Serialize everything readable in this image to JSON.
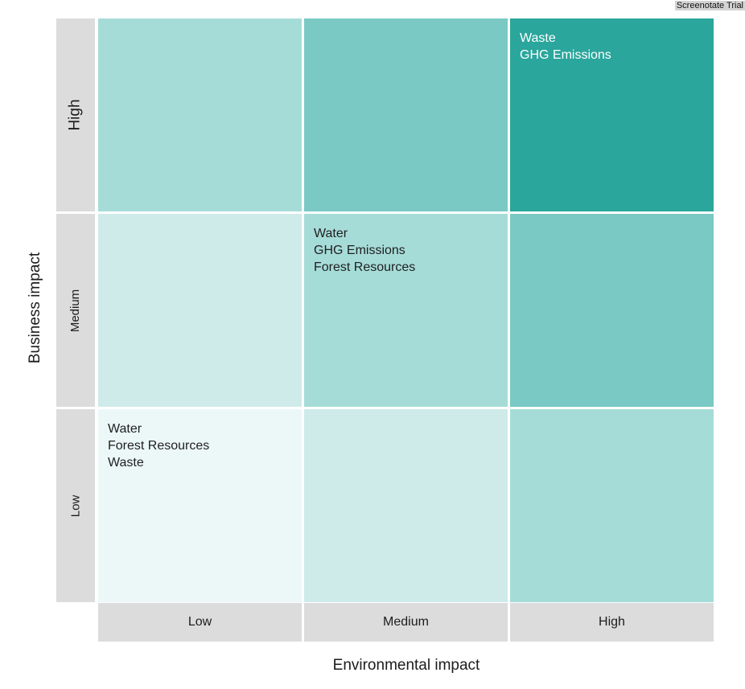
{
  "watermark": "Screenotate Trial",
  "chart_data": {
    "type": "heatmap",
    "xlabel": "Environmental impact",
    "ylabel": "Business impact",
    "x_categories": [
      "Low",
      "Medium",
      "High"
    ],
    "y_categories": [
      "Low",
      "Medium",
      "High"
    ],
    "cells": [
      {
        "x": "Low",
        "y": "High",
        "color": "#a6dcd8",
        "items": []
      },
      {
        "x": "Medium",
        "y": "High",
        "color": "#7ac9c4",
        "items": []
      },
      {
        "x": "High",
        "y": "High",
        "color": "#2aa69c",
        "items": [
          "Waste",
          "GHG Emissions"
        ]
      },
      {
        "x": "Low",
        "y": "Medium",
        "color": "#ceebea",
        "items": []
      },
      {
        "x": "Medium",
        "y": "Medium",
        "color": "#a6dcd8",
        "items": [
          "Water",
          "GHG Emissions",
          "Forest Resources"
        ]
      },
      {
        "x": "High",
        "y": "Medium",
        "color": "#7ac9c4",
        "items": []
      },
      {
        "x": "Low",
        "y": "Low",
        "color": "#ebf8f7",
        "items": [
          "Water",
          "Forest Resources",
          "Waste"
        ]
      },
      {
        "x": "Medium",
        "y": "Low",
        "color": "#ceebea",
        "items": []
      },
      {
        "x": "High",
        "y": "Low",
        "color": "#a6dcd8",
        "items": []
      }
    ]
  }
}
